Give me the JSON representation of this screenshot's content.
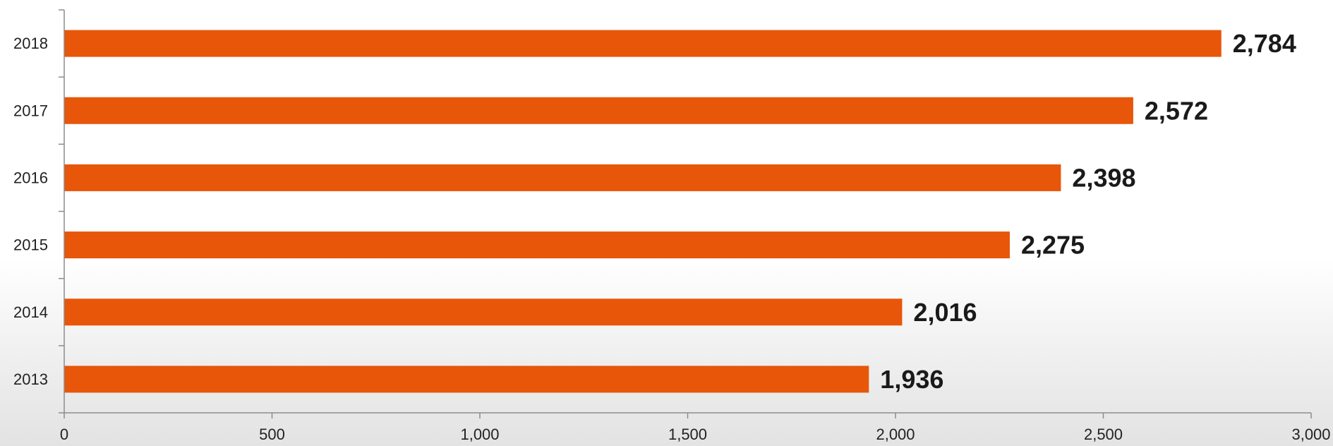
{
  "chart_data": {
    "type": "bar",
    "orientation": "horizontal",
    "title": "",
    "categories": [
      "2013",
      "2014",
      "2015",
      "2016",
      "2017",
      "2018"
    ],
    "values": [
      1936,
      2016,
      2275,
      2398,
      2572,
      2784
    ],
    "data_labels": [
      "1,936",
      "2,016",
      "2,275",
      "2,398",
      "2,572",
      "2,784"
    ],
    "xlim": [
      0,
      3000
    ],
    "xticks": [
      0,
      500,
      1000,
      1500,
      2000,
      2500,
      3000
    ],
    "xtick_labels": [
      "0",
      "500",
      "1,000",
      "1,500",
      "2,000",
      "2,500",
      "3,000"
    ],
    "xlabel": "",
    "ylabel": "",
    "grid": false,
    "legend": "none",
    "colors": {
      "bar": "#E8560A",
      "axis": "#8c8c8c",
      "text": "#222222"
    }
  }
}
